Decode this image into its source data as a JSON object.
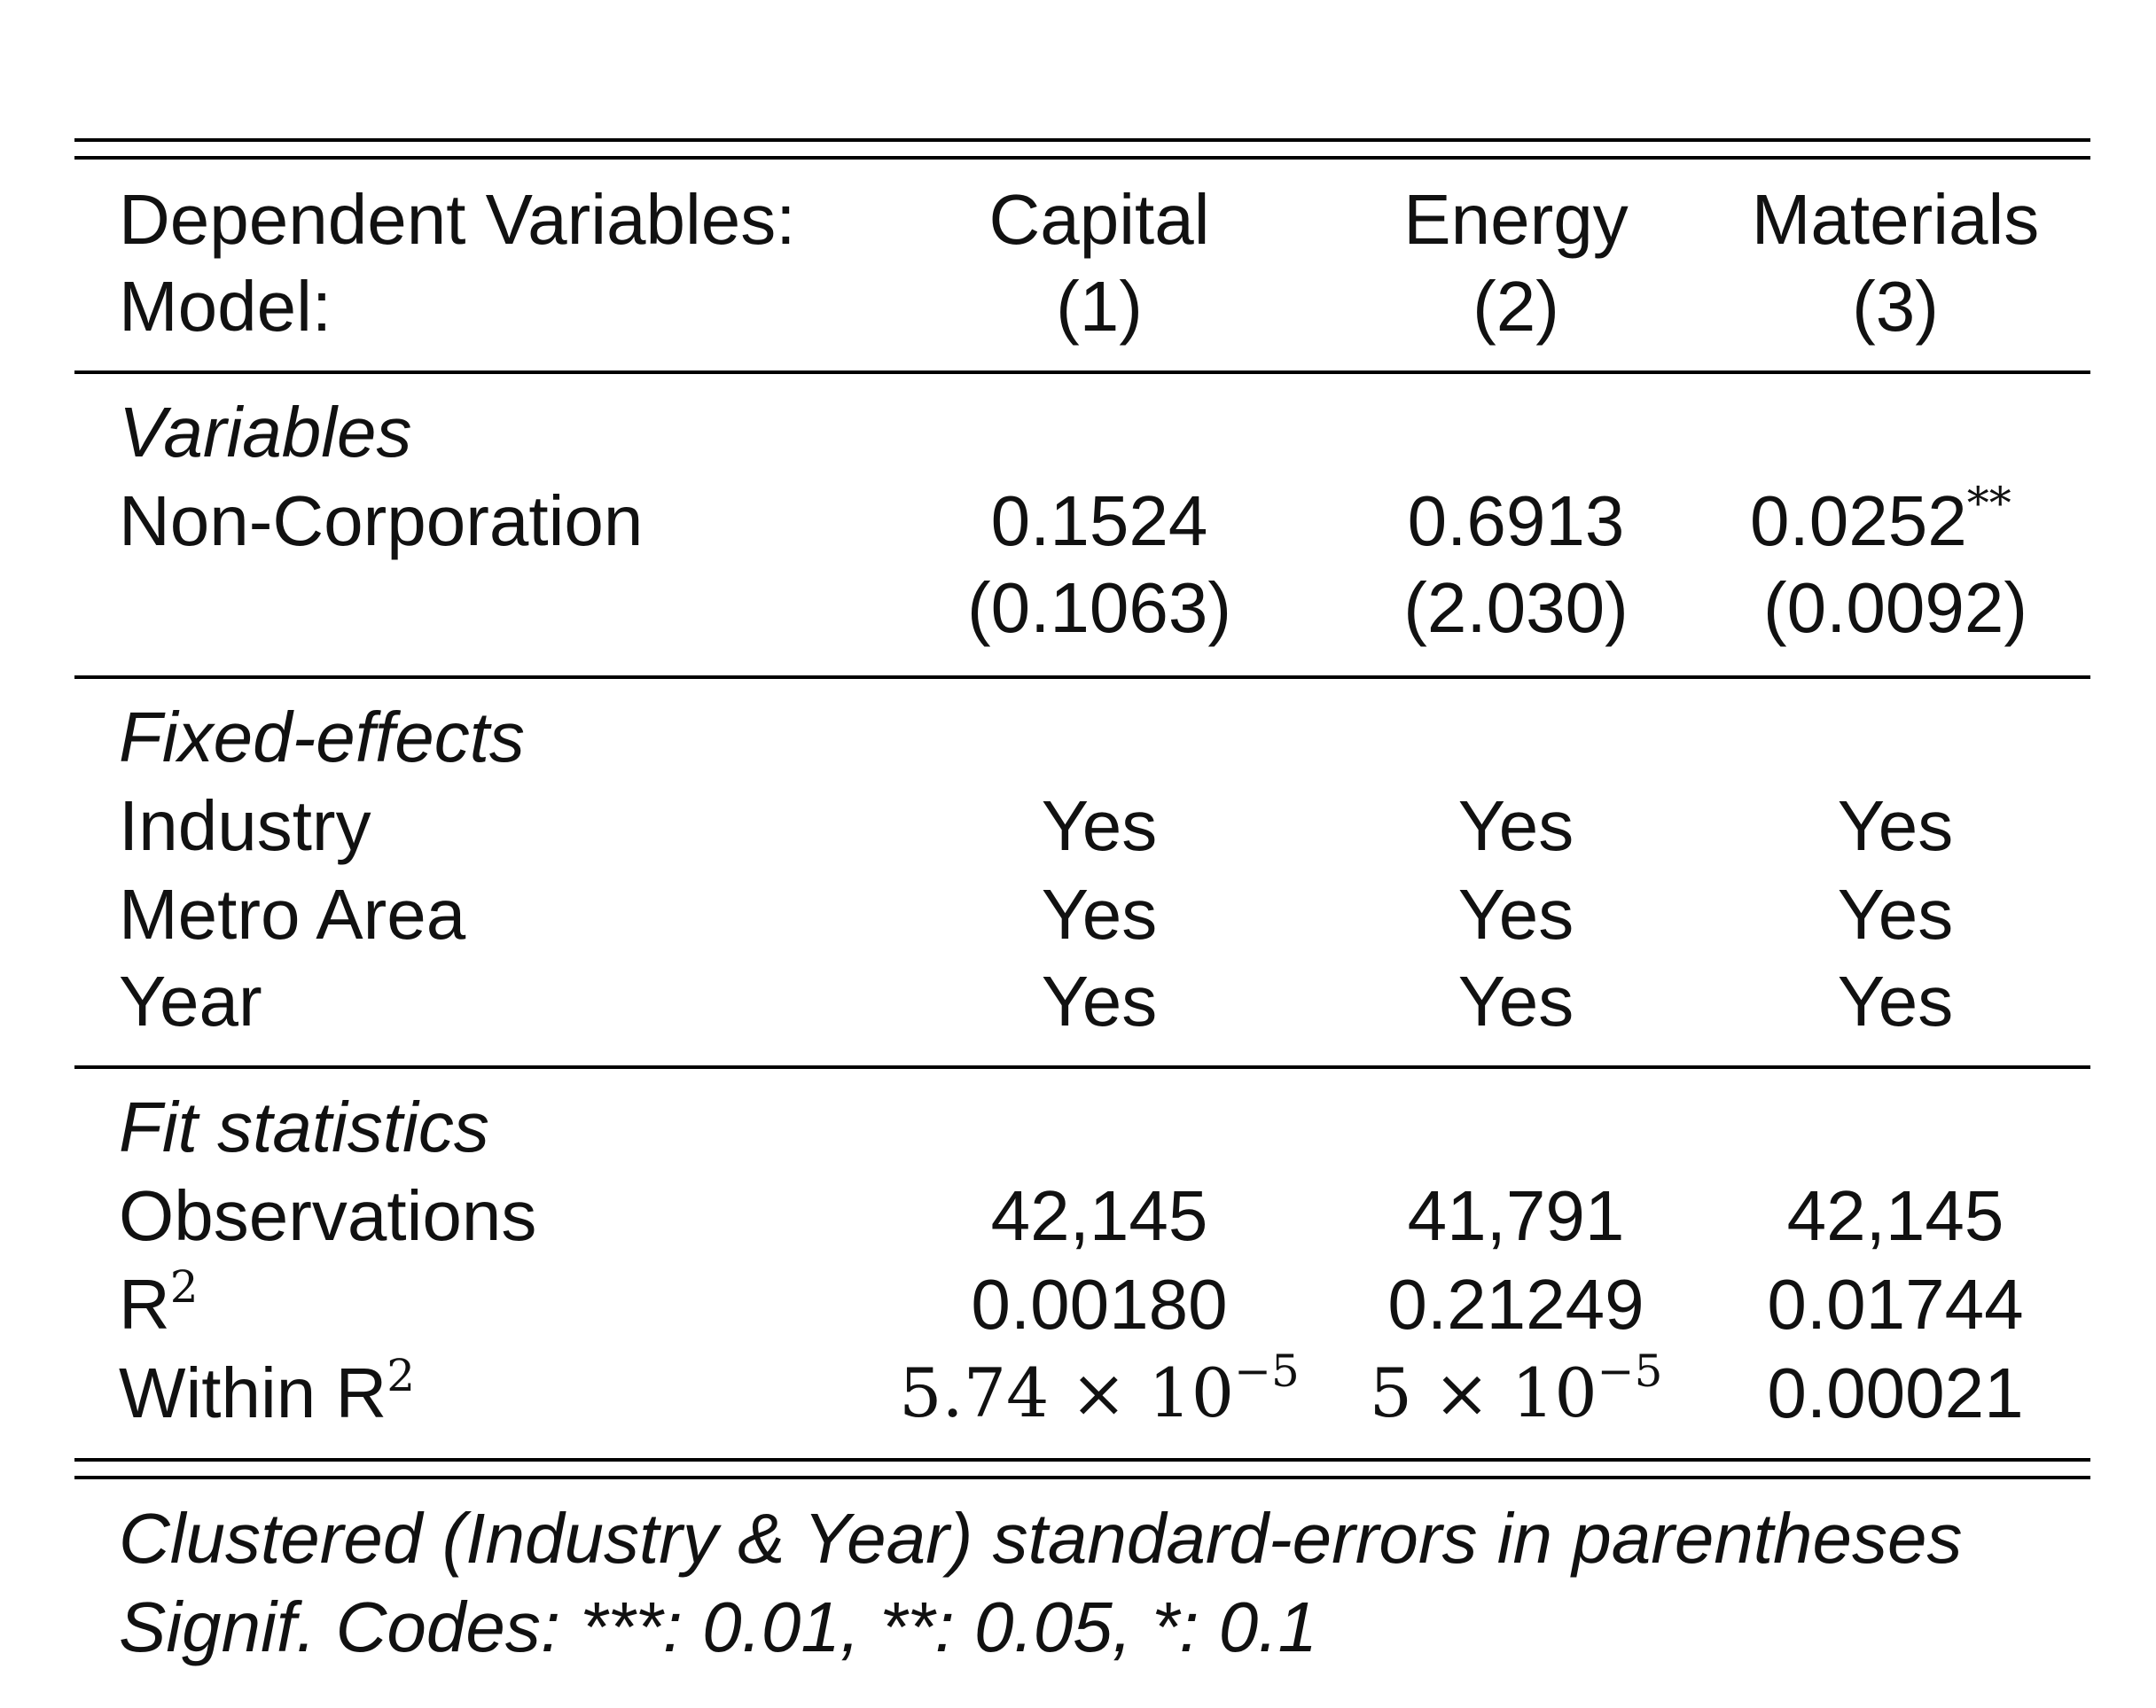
{
  "header": {
    "dependent_label": "Dependent Variables:",
    "model_label": "Model:",
    "columns": [
      {
        "name": "Capital",
        "model": "(1)"
      },
      {
        "name": "Energy",
        "model": "(2)"
      },
      {
        "name": "Materials",
        "model": "(3)"
      }
    ]
  },
  "variables": {
    "section_label": "Variables",
    "row_label": "Non-Corporation",
    "coefficients": [
      "0.1524",
      "0.6913",
      "0.0252"
    ],
    "significance": [
      "",
      "",
      "**"
    ],
    "std_errors": [
      "(0.1063)",
      "(2.030)",
      "(0.0092)"
    ]
  },
  "fixed_effects": {
    "section_label": "Fixed-effects",
    "rows": [
      {
        "label": "Industry",
        "values": [
          "Yes",
          "Yes",
          "Yes"
        ]
      },
      {
        "label": "Metro Area",
        "values": [
          "Yes",
          "Yes",
          "Yes"
        ]
      },
      {
        "label": "Year",
        "values": [
          "Yes",
          "Yes",
          "Yes"
        ]
      }
    ]
  },
  "fit_statistics": {
    "section_label": "Fit statistics",
    "observations": {
      "label": "Observations",
      "values": [
        "42,145",
        "41,791",
        "42,145"
      ]
    },
    "r2": {
      "label_base": "R",
      "label_sup": "2",
      "values": [
        "0.00180",
        "0.21249",
        "0.01744"
      ]
    },
    "within_r2": {
      "label_base": "Within R",
      "label_sup": "2",
      "values": [
        {
          "mantissa": "5.74 × 10",
          "exponent": "−5"
        },
        {
          "mantissa": "5 × 10",
          "exponent": "−5"
        },
        {
          "plain": "0.00021"
        }
      ]
    }
  },
  "footnotes": {
    "line1": "Clustered (Industry & Year) standard-errors in parentheses",
    "line2": "Signif. Codes: ***: 0.01, **: 0.05, *: 0.1"
  }
}
